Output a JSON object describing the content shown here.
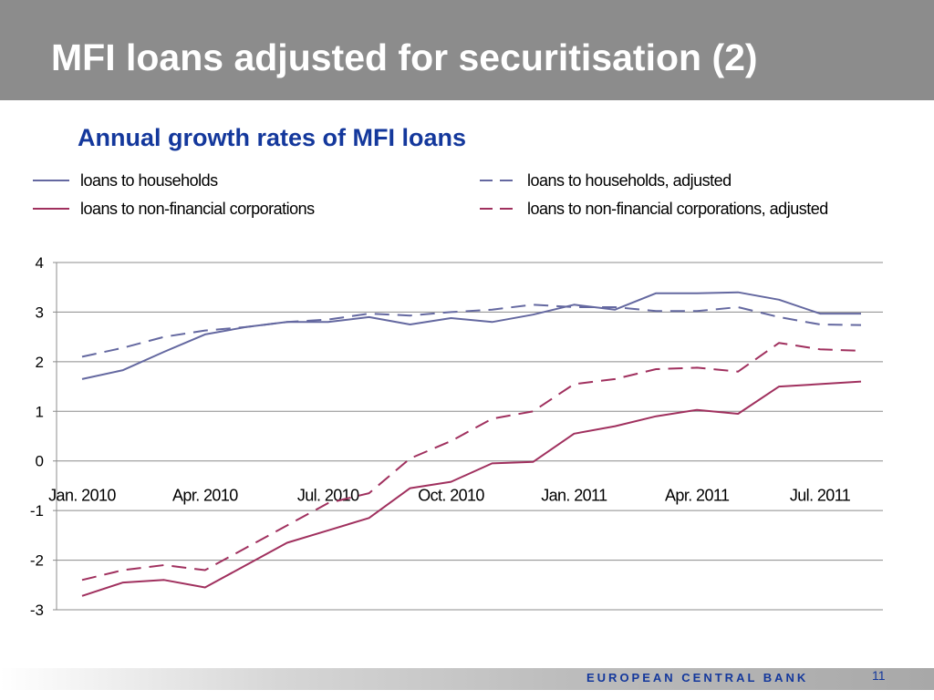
{
  "slide": {
    "title": "MFI loans adjusted for securitisation (2)",
    "footer_org": "EUROPEAN CENTRAL BANK",
    "page_number": "11"
  },
  "colors": {
    "title_bar": "#8c8c8c",
    "title_text": "#ffffff",
    "chart_title": "#14389c",
    "households": "#6468a0",
    "corporations": "#a0305e",
    "gridline": "#8c8c8c"
  },
  "chart_data": {
    "type": "line",
    "title": "Annual growth rates of MFI loans",
    "ylim": [
      -3,
      4
    ],
    "yticks": [
      -3,
      -2,
      -1,
      0,
      1,
      2,
      3,
      4
    ],
    "grid": true,
    "legend_position": "top",
    "x": [
      "2010-01",
      "2010-02",
      "2010-03",
      "2010-04",
      "2010-05",
      "2010-06",
      "2010-07",
      "2010-08",
      "2010-09",
      "2010-10",
      "2010-11",
      "2010-12",
      "2011-01",
      "2011-02",
      "2011-03",
      "2011-04",
      "2011-05",
      "2011-06",
      "2011-07",
      "2011-08"
    ],
    "x_tick_labels": [
      {
        "x": "2010-01",
        "label": "Jan. 2010"
      },
      {
        "x": "2010-04",
        "label": "Apr. 2010"
      },
      {
        "x": "2010-07",
        "label": "Jul. 2010"
      },
      {
        "x": "2010-10",
        "label": "Oct. 2010"
      },
      {
        "x": "2011-01",
        "label": "Jan. 2011"
      },
      {
        "x": "2011-04",
        "label": "Apr. 2011"
      },
      {
        "x": "2011-07",
        "label": "Jul. 2011"
      }
    ],
    "series": [
      {
        "name": "loans to households",
        "style": "solid",
        "color": "#6468a0",
        "values": [
          1.65,
          1.83,
          2.2,
          2.55,
          2.7,
          2.8,
          2.8,
          2.9,
          2.75,
          2.88,
          2.8,
          2.95,
          3.15,
          3.05,
          3.38,
          3.38,
          3.4,
          3.25,
          2.97,
          2.97
        ]
      },
      {
        "name": "loans to households, adjusted",
        "style": "dashed",
        "color": "#6468a0",
        "values": [
          2.1,
          2.28,
          2.5,
          2.63,
          2.7,
          2.8,
          2.85,
          2.97,
          2.93,
          3.0,
          3.05,
          3.15,
          3.1,
          3.1,
          3.02,
          3.02,
          3.1,
          2.9,
          2.75,
          2.74
        ]
      },
      {
        "name": "loans to non-financial corporations",
        "style": "solid",
        "color": "#a0305e",
        "values": [
          -2.72,
          -2.45,
          -2.4,
          -2.55,
          -2.1,
          -1.65,
          -1.4,
          -1.15,
          -0.55,
          -0.42,
          -0.05,
          -0.02,
          0.55,
          0.7,
          0.9,
          1.03,
          0.95,
          1.5,
          1.55,
          1.6
        ]
      },
      {
        "name": "loans to non-financial corporations, adjusted",
        "style": "dashed",
        "color": "#a0305e",
        "values": [
          -2.4,
          -2.2,
          -2.1,
          -2.2,
          -1.75,
          -1.3,
          -0.85,
          -0.65,
          0.05,
          0.4,
          0.85,
          1.0,
          1.55,
          1.65,
          1.85,
          1.88,
          1.8,
          2.38,
          2.25,
          2.22
        ]
      }
    ]
  }
}
